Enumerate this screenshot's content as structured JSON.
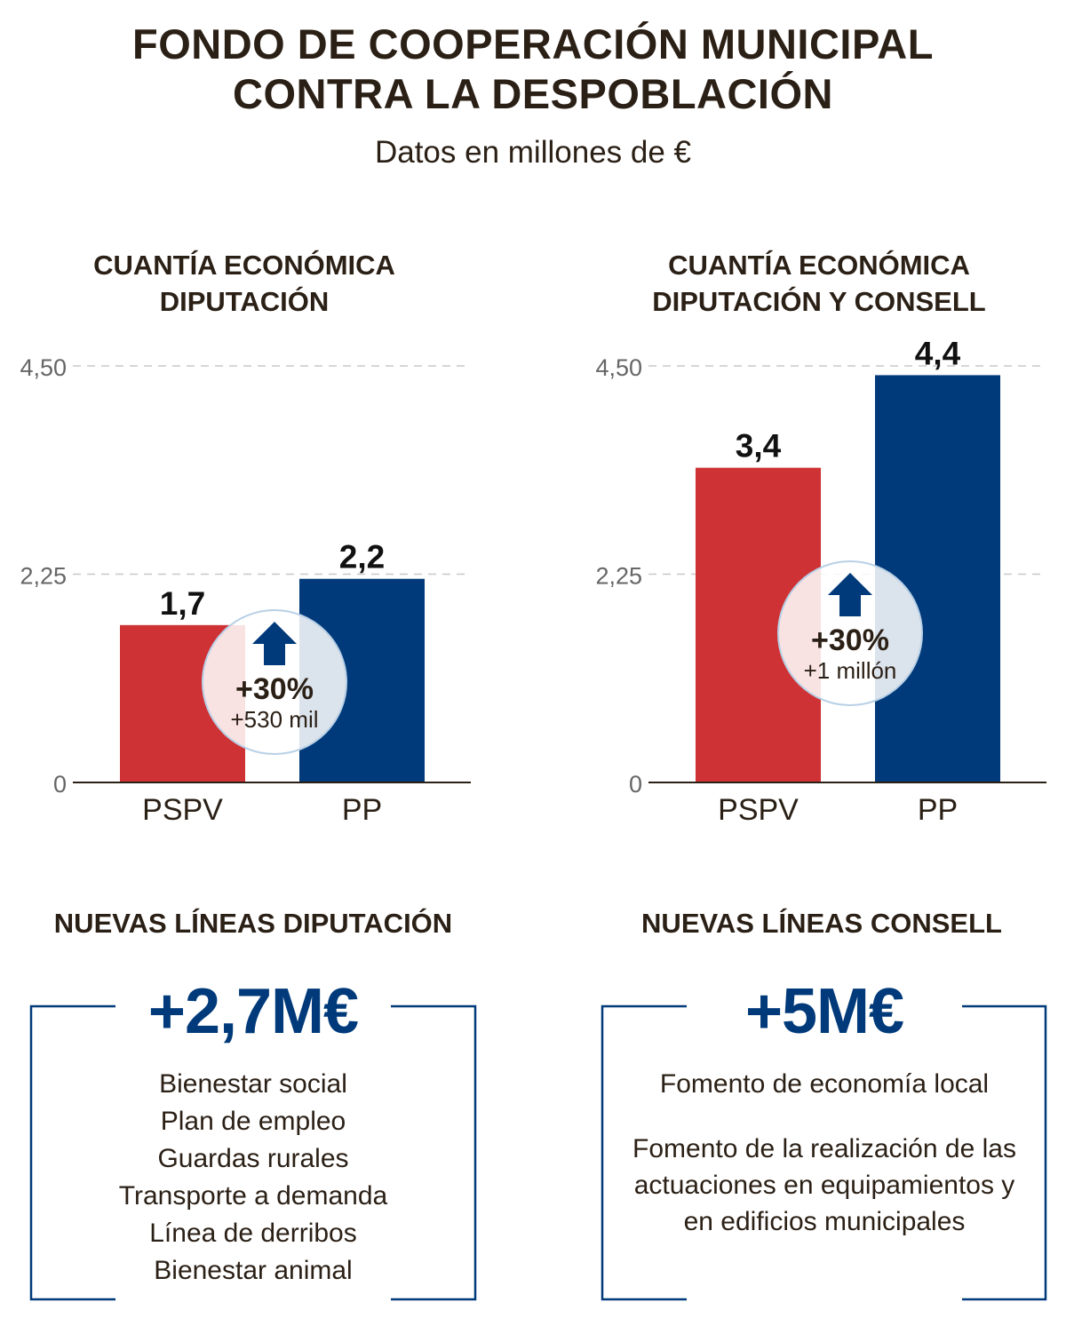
{
  "title_lines": [
    "FONDO DE COOPERACIÓN MUNICIPAL",
    "CONTRA LA DESPOBLACIÓN"
  ],
  "subtitle": "Datos en millones de €",
  "colors": {
    "PSPV": "#cf3234",
    "PP": "#003a7a",
    "text": "#2b2016",
    "circle_border": "#b8d0e6"
  },
  "chart_data": [
    {
      "type": "bar",
      "title_lines": [
        "CUANTÍA ECONÓMICA",
        "DIPUTACIÓN"
      ],
      "categories": [
        "PSPV",
        "PP"
      ],
      "values": [
        1.7,
        2.2
      ],
      "data_labels": [
        "1,7",
        "2,2"
      ],
      "yticks": [
        0,
        2.25,
        4.5
      ],
      "ytick_labels": [
        "0",
        "2,25",
        "4,50"
      ],
      "ylim": [
        0,
        4.5
      ],
      "grid": "dashed horizontal",
      "badge": {
        "icon": "arrow-up-icon",
        "percent": "+30%",
        "amount": "+530 mil"
      }
    },
    {
      "type": "bar",
      "title_lines": [
        "CUANTÍA ECONÓMICA",
        "DIPUTACIÓN Y CONSELL"
      ],
      "categories": [
        "PSPV",
        "PP"
      ],
      "values": [
        3.4,
        4.4
      ],
      "data_labels": [
        "3,4",
        "4,4"
      ],
      "yticks": [
        0,
        2.25,
        4.5
      ],
      "ytick_labels": [
        "0",
        "2,25",
        "4,50"
      ],
      "ylim": [
        0,
        4.5
      ],
      "grid": "dashed horizontal",
      "badge": {
        "icon": "arrow-up-icon",
        "percent": "+30%",
        "amount": "+1 millón"
      }
    }
  ],
  "lines_diputacion": {
    "heading": "NUEVAS LÍNEAS DIPUTACIÓN",
    "amount": "+2,7M€",
    "items": [
      "Bienestar social",
      "Plan de empleo",
      "Guardas rurales",
      "Transporte a demanda",
      "Línea de derribos",
      "Bienestar animal"
    ]
  },
  "lines_consell": {
    "heading": "NUEVAS LÍNEAS CONSELL",
    "amount": "+5M€",
    "items": [
      "Fomento de economía local",
      "Fomento de la realización de las actuaciones en equipamientos y en edificios municipales"
    ]
  }
}
